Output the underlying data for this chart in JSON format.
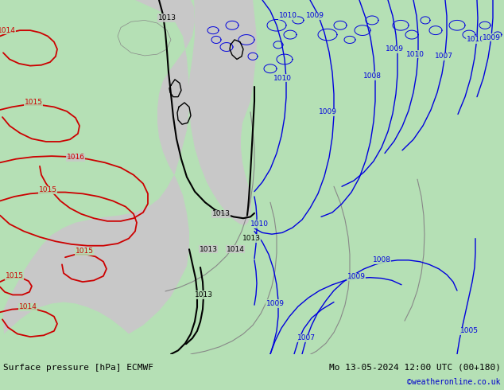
{
  "title_left": "Surface pressure [hPa] ECMWF",
  "title_right": "Mo 13-05-2024 12:00 UTC (00+180)",
  "watermark": "©weatheronline.co.uk",
  "bg_green": "#b5e0b5",
  "sea_gray": "#c8c8c8",
  "contour_blue": "#0000dd",
  "contour_black": "#000000",
  "contour_red": "#cc0000",
  "contour_gray": "#888888",
  "footer_bg": "#c0c0c0",
  "footer_text": "#000000",
  "watermark_color": "#0000cc",
  "figsize": [
    6.34,
    4.9
  ],
  "dpi": 100,
  "label_fs": 6.5,
  "footer_fs": 8
}
